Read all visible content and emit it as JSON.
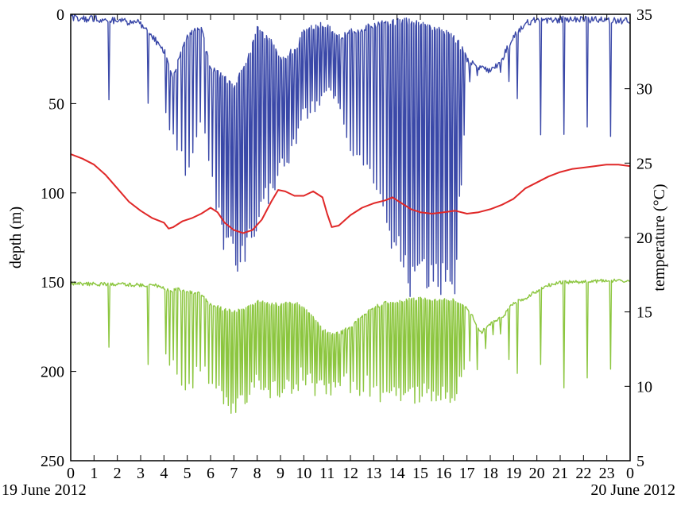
{
  "chart_data": {
    "type": "line",
    "x_axis": {
      "range": [
        0,
        24
      ],
      "tick_labels": [
        "0",
        "1",
        "2",
        "3",
        "4",
        "5",
        "6",
        "7",
        "8",
        "9",
        "10",
        "11",
        "12",
        "13",
        "14",
        "15",
        "16",
        "17",
        "18",
        "19",
        "20",
        "21",
        "22",
        "23",
        "0"
      ],
      "start_date": "19 June 2012",
      "end_date": "20 June 2012"
    },
    "y_left": {
      "label": "depth (m)",
      "range": [
        0,
        250
      ],
      "inverted": true,
      "ticks": [
        "0",
        "50",
        "100",
        "150",
        "200",
        "250"
      ]
    },
    "y_right": {
      "label": "temperature (°C)",
      "range": [
        5,
        35
      ],
      "ticks": [
        "5",
        "10",
        "15",
        "20",
        "25",
        "30",
        "35"
      ]
    },
    "grid": false,
    "series": [
      {
        "axis": "left",
        "color": "#3a48a8",
        "style": "spiky",
        "base_depth": [
          [
            0,
            2
          ],
          [
            1.5,
            3
          ],
          [
            3,
            5
          ],
          [
            4,
            20
          ],
          [
            4.4,
            35
          ],
          [
            5,
            12
          ],
          [
            5.6,
            8
          ],
          [
            6,
            30
          ],
          [
            6.5,
            35
          ],
          [
            7,
            40
          ],
          [
            7.6,
            25
          ],
          [
            8,
            8
          ],
          [
            8.6,
            15
          ],
          [
            9,
            25
          ],
          [
            9.6,
            20
          ],
          [
            10,
            10
          ],
          [
            10.6,
            6
          ],
          [
            11,
            6
          ],
          [
            11.6,
            12
          ],
          [
            12,
            10
          ],
          [
            12.6,
            8
          ],
          [
            13,
            6
          ],
          [
            13.6,
            5
          ],
          [
            14,
            4
          ],
          [
            14.6,
            4
          ],
          [
            15,
            6
          ],
          [
            15.6,
            8
          ],
          [
            16,
            10
          ],
          [
            16.6,
            15
          ],
          [
            17,
            25
          ],
          [
            17.5,
            30
          ],
          [
            18,
            32
          ],
          [
            18.5,
            25
          ],
          [
            19,
            12
          ],
          [
            19.6,
            5
          ],
          [
            20,
            3
          ],
          [
            22,
            3
          ],
          [
            24,
            4
          ]
        ],
        "dive_depth": [
          [
            4,
            55
          ],
          [
            4.6,
            85
          ],
          [
            5,
            95
          ],
          [
            5.6,
            60
          ],
          [
            6,
            100
          ],
          [
            6.4,
            130
          ],
          [
            6.8,
            145
          ],
          [
            7.2,
            148
          ],
          [
            7.6,
            135
          ],
          [
            8,
            120
          ],
          [
            8.6,
            105
          ],
          [
            9,
            90
          ],
          [
            9.6,
            80
          ],
          [
            10,
            60
          ],
          [
            10.5,
            55
          ],
          [
            11,
            45
          ],
          [
            11.6,
            55
          ],
          [
            12,
            80
          ],
          [
            12.6,
            85
          ],
          [
            13,
            100
          ],
          [
            13.5,
            125
          ],
          [
            14,
            140
          ],
          [
            14.5,
            165
          ],
          [
            15,
            160
          ],
          [
            15.5,
            160
          ],
          [
            16,
            160
          ],
          [
            16.5,
            160
          ],
          [
            17,
            40
          ],
          [
            17.6,
            35
          ],
          [
            18,
            30
          ],
          [
            18.6,
            35
          ],
          [
            19,
            45
          ],
          [
            19.4,
            70
          ]
        ],
        "dive_count": [
          [
            0,
            0.6
          ],
          [
            3.9,
            0.6
          ],
          [
            4,
            6
          ],
          [
            6,
            6
          ],
          [
            6.3,
            10
          ],
          [
            11.5,
            10
          ],
          [
            11.6,
            7
          ],
          [
            13.5,
            7
          ],
          [
            13.6,
            10
          ],
          [
            16.8,
            10
          ],
          [
            16.9,
            3
          ],
          [
            19,
            3
          ],
          [
            19.1,
            1
          ],
          [
            24,
            1
          ]
        ]
      },
      {
        "axis": "right",
        "color": "#e02828",
        "style": "smooth",
        "points": [
          [
            0,
            25.6
          ],
          [
            0.5,
            25.3
          ],
          [
            1,
            24.9
          ],
          [
            1.5,
            24.2
          ],
          [
            2,
            23.3
          ],
          [
            2.5,
            22.4
          ],
          [
            3,
            21.8
          ],
          [
            3.5,
            21.3
          ],
          [
            4,
            21.0
          ],
          [
            4.2,
            20.6
          ],
          [
            4.4,
            20.7
          ],
          [
            4.8,
            21.1
          ],
          [
            5.2,
            21.3
          ],
          [
            5.6,
            21.6
          ],
          [
            6,
            22.0
          ],
          [
            6.3,
            21.7
          ],
          [
            6.6,
            21.0
          ],
          [
            7,
            20.5
          ],
          [
            7.4,
            20.3
          ],
          [
            7.8,
            20.5
          ],
          [
            8.2,
            21.2
          ],
          [
            8.6,
            22.4
          ],
          [
            8.9,
            23.2
          ],
          [
            9.2,
            23.1
          ],
          [
            9.6,
            22.8
          ],
          [
            10,
            22.8
          ],
          [
            10.4,
            23.1
          ],
          [
            10.8,
            22.7
          ],
          [
            11,
            21.6
          ],
          [
            11.2,
            20.7
          ],
          [
            11.5,
            20.8
          ],
          [
            12,
            21.5
          ],
          [
            12.5,
            22.0
          ],
          [
            13,
            22.3
          ],
          [
            13.5,
            22.5
          ],
          [
            13.8,
            22.7
          ],
          [
            14.2,
            22.3
          ],
          [
            14.6,
            21.9
          ],
          [
            15,
            21.7
          ],
          [
            15.5,
            21.6
          ],
          [
            16,
            21.7
          ],
          [
            16.5,
            21.8
          ],
          [
            17,
            21.6
          ],
          [
            17.5,
            21.7
          ],
          [
            18,
            21.9
          ],
          [
            18.5,
            22.2
          ],
          [
            19,
            22.6
          ],
          [
            19.5,
            23.3
          ],
          [
            20,
            23.7
          ],
          [
            20.5,
            24.1
          ],
          [
            21,
            24.4
          ],
          [
            21.5,
            24.6
          ],
          [
            22,
            24.7
          ],
          [
            22.5,
            24.8
          ],
          [
            23,
            24.9
          ],
          [
            23.5,
            24.9
          ],
          [
            24,
            24.8
          ]
        ]
      },
      {
        "axis": "right",
        "color": "#8cc63f",
        "style": "spiky",
        "base_temp": [
          [
            0,
            16.9
          ],
          [
            3.5,
            16.8
          ],
          [
            3.9,
            16.7
          ],
          [
            4.2,
            16.4
          ],
          [
            4.6,
            16.5
          ],
          [
            5,
            16.4
          ],
          [
            5.6,
            16.2
          ],
          [
            6,
            15.5
          ],
          [
            6.5,
            15.2
          ],
          [
            7,
            15.0
          ],
          [
            7.6,
            15.3
          ],
          [
            8,
            15.7
          ],
          [
            8.6,
            15.5
          ],
          [
            9,
            15.5
          ],
          [
            9.6,
            15.6
          ],
          [
            10,
            15.3
          ],
          [
            10.4,
            14.6
          ],
          [
            10.8,
            13.8
          ],
          [
            11.2,
            13.5
          ],
          [
            11.6,
            13.6
          ],
          [
            12,
            14.0
          ],
          [
            12.5,
            14.7
          ],
          [
            13,
            15.3
          ],
          [
            13.5,
            15.6
          ],
          [
            14,
            15.7
          ],
          [
            14.5,
            15.8
          ],
          [
            15,
            15.9
          ],
          [
            15.5,
            15.8
          ],
          [
            16,
            15.8
          ],
          [
            16.5,
            15.8
          ],
          [
            16.9,
            15.5
          ],
          [
            17.2,
            14.8
          ],
          [
            17.6,
            13.6
          ],
          [
            18,
            14.2
          ],
          [
            18.5,
            14.6
          ],
          [
            19,
            15.6
          ],
          [
            19.6,
            16.0
          ],
          [
            20,
            16.4
          ],
          [
            20.5,
            16.8
          ],
          [
            21,
            17.0
          ],
          [
            22,
            17.0
          ],
          [
            23,
            17.1
          ],
          [
            24,
            17.1
          ]
        ],
        "dive_temp": [
          [
            4,
            13
          ],
          [
            4.5,
            12
          ],
          [
            5,
            10.8
          ],
          [
            5.6,
            12
          ],
          [
            6,
            11.5
          ],
          [
            6.4,
            10
          ],
          [
            6.8,
            9.4
          ],
          [
            7.2,
            9.6
          ],
          [
            7.6,
            10.3
          ],
          [
            8,
            11
          ],
          [
            8.6,
            10.5
          ],
          [
            9,
            10.8
          ],
          [
            9.6,
            11
          ],
          [
            10,
            11.5
          ],
          [
            10.5,
            11
          ],
          [
            11,
            11
          ],
          [
            11.6,
            11
          ],
          [
            12,
            11.2
          ],
          [
            12.5,
            11
          ],
          [
            13,
            10.6
          ],
          [
            13.5,
            10.4
          ],
          [
            14,
            10.2
          ],
          [
            14.5,
            10.2
          ],
          [
            15,
            10.3
          ],
          [
            15.5,
            10.3
          ],
          [
            16,
            10.3
          ],
          [
            16.5,
            10.3
          ],
          [
            17,
            13
          ],
          [
            17.6,
            12.5
          ],
          [
            18,
            13.5
          ],
          [
            18.6,
            14
          ],
          [
            19,
            12.5
          ],
          [
            19.4,
            11.5
          ]
        ],
        "dive_count": [
          [
            0,
            0.6
          ],
          [
            3.9,
            0.6
          ],
          [
            4,
            6
          ],
          [
            6,
            6
          ],
          [
            6.3,
            10
          ],
          [
            11.5,
            10
          ],
          [
            11.6,
            7
          ],
          [
            13.5,
            7
          ],
          [
            13.6,
            10
          ],
          [
            16.8,
            10
          ],
          [
            16.9,
            3
          ],
          [
            19,
            3
          ],
          [
            19.1,
            1
          ],
          [
            24,
            1
          ]
        ]
      }
    ]
  }
}
